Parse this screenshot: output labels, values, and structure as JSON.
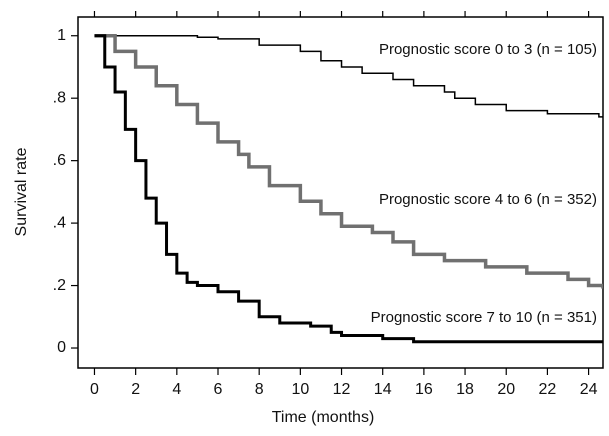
{
  "chart_data": {
    "type": "line",
    "step": true,
    "x_label": "Time (months)",
    "y_label": "Survival rate",
    "xlim": [
      -0.8,
      24.7
    ],
    "xticks": [
      0,
      2,
      4,
      6,
      8,
      10,
      12,
      14,
      16,
      18,
      20,
      22,
      24
    ],
    "ylim": [
      -0.064,
      1.06
    ],
    "yticks": [
      0,
      {
        "value": 0.2,
        "label": ".2"
      },
      {
        "value": 0.4,
        "label": ".4"
      },
      {
        "value": 0.6,
        "label": ".6"
      },
      {
        "value": 0.8,
        "label": ".8"
      },
      1
    ],
    "series": [
      {
        "name": "Prognostic score 0 to 3 (n = 105)",
        "color": "#000000",
        "x": [
          0,
          5,
          6,
          8,
          10,
          11,
          12,
          13,
          14.5,
          15.5,
          17,
          17.5,
          18.5,
          20,
          22,
          24.5,
          24.7
        ],
        "values": [
          1,
          0.995,
          0.99,
          0.97,
          0.95,
          0.92,
          0.9,
          0.88,
          0.86,
          0.84,
          0.82,
          0.8,
          0.78,
          0.76,
          0.75,
          0.74,
          0.74
        ]
      },
      {
        "name": "Prognostic score 4 to 6 (n = 352)",
        "color": "#707070",
        "x": [
          0,
          1,
          2,
          3,
          4,
          5,
          6,
          7,
          7.5,
          8.5,
          10,
          11,
          12,
          13.5,
          14.5,
          15.5,
          17,
          19,
          21,
          23,
          24,
          24.7
        ],
        "values": [
          1,
          0.95,
          0.9,
          0.84,
          0.78,
          0.72,
          0.66,
          0.62,
          0.58,
          0.52,
          0.47,
          0.43,
          0.39,
          0.37,
          0.34,
          0.3,
          0.28,
          0.26,
          0.24,
          0.22,
          0.2,
          0.19
        ]
      },
      {
        "name": "Prognostic score 7 to 10 (n = 351)",
        "color": "#000000",
        "x": [
          0,
          0.5,
          1,
          1.5,
          2,
          2.5,
          3,
          3.5,
          4,
          4.5,
          5,
          6,
          7,
          8,
          9,
          10.5,
          11.5,
          12,
          14,
          15.5,
          24.7
        ],
        "values": [
          1,
          0.9,
          0.82,
          0.7,
          0.6,
          0.48,
          0.4,
          0.3,
          0.24,
          0.21,
          0.2,
          0.18,
          0.15,
          0.1,
          0.08,
          0.07,
          0.05,
          0.04,
          0.03,
          0.02,
          0.02
        ]
      }
    ]
  }
}
